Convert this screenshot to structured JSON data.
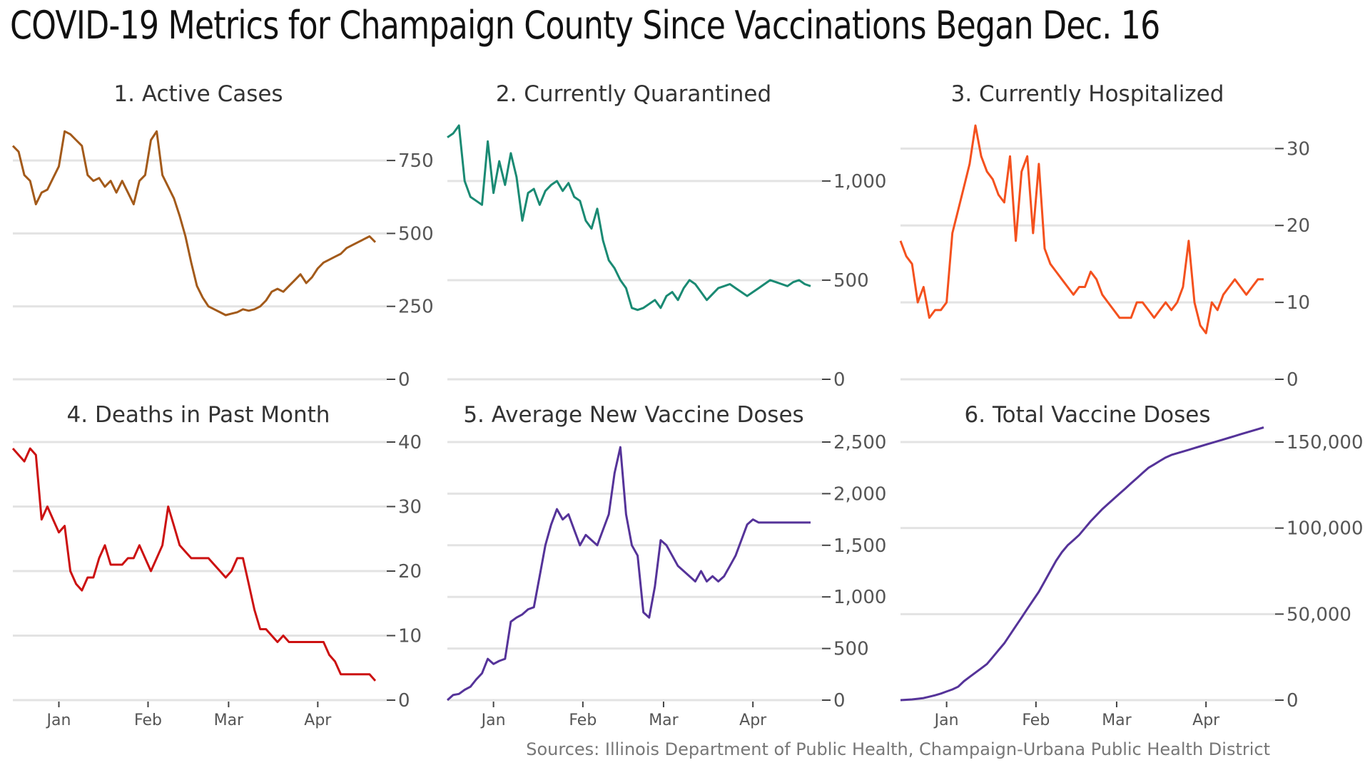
{
  "title": "COVID-19 Metrics for Champaign County Since Vaccinations Began Dec. 16",
  "source": "Sources: Illinois Department of Public Health, Champaign-Urbana Public Health District",
  "x_axis": {
    "start_day": 0,
    "end_day": 127,
    "ticks": [
      {
        "label": "Jan",
        "day": 16
      },
      {
        "label": "Feb",
        "day": 47
      },
      {
        "label": "Mar",
        "day": 75
      },
      {
        "label": "Apr",
        "day": 106
      }
    ]
  },
  "chart_data": [
    {
      "type": "line",
      "title": "1. Active Cases",
      "color": "#a35a1a",
      "ylim": [
        0,
        870
      ],
      "yticks": [
        0,
        250,
        500,
        750
      ],
      "ytick_labels": [
        "0",
        "250",
        "500",
        "750"
      ],
      "x": [
        0,
        2,
        4,
        6,
        8,
        10,
        12,
        14,
        16,
        18,
        20,
        22,
        24,
        26,
        28,
        30,
        32,
        34,
        36,
        38,
        40,
        42,
        44,
        46,
        48,
        50,
        52,
        54,
        56,
        58,
        60,
        62,
        64,
        66,
        68,
        70,
        72,
        74,
        76,
        78,
        80,
        82,
        84,
        86,
        88,
        90,
        92,
        94,
        96,
        98,
        100,
        102,
        104,
        106,
        108,
        110,
        112,
        114,
        116,
        118,
        120,
        122,
        124,
        126
      ],
      "values": [
        800,
        780,
        700,
        680,
        600,
        640,
        650,
        690,
        730,
        850,
        840,
        820,
        800,
        700,
        680,
        690,
        660,
        680,
        640,
        680,
        640,
        600,
        680,
        700,
        820,
        850,
        700,
        660,
        620,
        560,
        490,
        400,
        320,
        280,
        250,
        240,
        230,
        220,
        225,
        230,
        240,
        235,
        240,
        250,
        270,
        300,
        310,
        300,
        320,
        340,
        360,
        330,
        350,
        380,
        400,
        410,
        420,
        430,
        450,
        460,
        470,
        480,
        490,
        470
      ]
    },
    {
      "type": "line",
      "title": "2. Currently Quarantined",
      "color": "#1a8a73",
      "ylim": [
        0,
        1280
      ],
      "yticks": [
        0,
        500,
        1000
      ],
      "ytick_labels": [
        "0",
        "500",
        "1,000"
      ],
      "x": [
        0,
        2,
        4,
        6,
        8,
        10,
        12,
        14,
        16,
        18,
        20,
        22,
        24,
        26,
        28,
        30,
        32,
        34,
        36,
        38,
        40,
        42,
        44,
        46,
        48,
        50,
        52,
        54,
        56,
        58,
        60,
        62,
        64,
        66,
        68,
        70,
        72,
        74,
        76,
        78,
        80,
        82,
        84,
        86,
        88,
        90,
        92,
        94,
        96,
        98,
        100,
        102,
        104,
        106,
        108,
        110,
        112,
        114,
        116,
        118,
        120,
        122,
        124,
        126
      ],
      "values": [
        1220,
        1240,
        1280,
        1000,
        920,
        900,
        880,
        1200,
        940,
        1100,
        980,
        1140,
        1020,
        800,
        940,
        960,
        880,
        950,
        980,
        1000,
        950,
        990,
        920,
        900,
        800,
        760,
        860,
        700,
        600,
        560,
        500,
        460,
        360,
        350,
        360,
        380,
        400,
        360,
        420,
        440,
        400,
        460,
        500,
        480,
        440,
        400,
        430,
        460,
        470,
        480,
        460,
        440,
        420,
        440,
        460,
        480,
        500,
        490,
        480,
        470,
        490,
        500,
        480,
        470
      ]
    },
    {
      "type": "line",
      "title": "3. Currently Hospitalized",
      "color": "#f4511e",
      "ylim": [
        0,
        33
      ],
      "yticks": [
        0,
        10,
        20,
        30
      ],
      "ytick_labels": [
        "0",
        "10",
        "20",
        "30"
      ],
      "x": [
        0,
        2,
        4,
        6,
        8,
        10,
        12,
        14,
        16,
        18,
        20,
        22,
        24,
        26,
        28,
        30,
        32,
        34,
        36,
        38,
        40,
        42,
        44,
        46,
        48,
        50,
        52,
        54,
        56,
        58,
        60,
        62,
        64,
        66,
        68,
        70,
        72,
        74,
        76,
        78,
        80,
        82,
        84,
        86,
        88,
        90,
        92,
        94,
        96,
        98,
        100,
        102,
        104,
        106,
        108,
        110,
        112,
        114,
        116,
        118,
        120,
        122,
        124,
        126
      ],
      "values": [
        18,
        16,
        15,
        10,
        12,
        8,
        9,
        9,
        10,
        19,
        22,
        25,
        28,
        33,
        29,
        27,
        26,
        24,
        23,
        29,
        18,
        27,
        29,
        19,
        28,
        17,
        15,
        14,
        13,
        12,
        11,
        12,
        12,
        14,
        13,
        11,
        10,
        9,
        8,
        8,
        8,
        10,
        10,
        9,
        8,
        9,
        10,
        9,
        10,
        12,
        18,
        10,
        7,
        6,
        10,
        9,
        11,
        12,
        13,
        12,
        11,
        12,
        13,
        13
      ]
    },
    {
      "type": "line",
      "title": "4. Deaths in Past Month",
      "color": "#cc1111",
      "ylim": [
        0,
        40
      ],
      "yticks": [
        0,
        10,
        20,
        30,
        40
      ],
      "ytick_labels": [
        "0",
        "10",
        "20",
        "30",
        "40"
      ],
      "x": [
        0,
        2,
        4,
        6,
        8,
        10,
        12,
        14,
        16,
        18,
        20,
        22,
        24,
        26,
        28,
        30,
        32,
        34,
        36,
        38,
        40,
        42,
        44,
        46,
        48,
        50,
        52,
        54,
        56,
        58,
        60,
        62,
        64,
        66,
        68,
        70,
        72,
        74,
        76,
        78,
        80,
        82,
        84,
        86,
        88,
        90,
        92,
        94,
        96,
        98,
        100,
        102,
        104,
        106,
        108,
        110,
        112,
        114,
        116,
        118,
        120,
        122,
        124,
        126
      ],
      "values": [
        39,
        38,
        37,
        39,
        38,
        28,
        30,
        28,
        26,
        27,
        20,
        18,
        17,
        19,
        19,
        22,
        24,
        21,
        21,
        21,
        22,
        22,
        24,
        22,
        20,
        22,
        24,
        30,
        27,
        24,
        23,
        22,
        22,
        22,
        22,
        21,
        20,
        19,
        20,
        22,
        22,
        18,
        14,
        11,
        11,
        10,
        9,
        10,
        9,
        9,
        9,
        9,
        9,
        9,
        9,
        7,
        6,
        4,
        4,
        4,
        4,
        4,
        4,
        3
      ]
    },
    {
      "type": "line",
      "title": "5. Average New Vaccine Doses",
      "color": "#553399",
      "ylim": [
        0,
        2500
      ],
      "yticks": [
        0,
        500,
        1000,
        1500,
        2000,
        2500
      ],
      "ytick_labels": [
        "0",
        "500",
        "1,000",
        "1,500",
        "2,000",
        "2,500"
      ],
      "x": [
        0,
        2,
        4,
        6,
        8,
        10,
        12,
        14,
        16,
        18,
        20,
        22,
        24,
        26,
        28,
        30,
        32,
        34,
        36,
        38,
        40,
        42,
        44,
        46,
        48,
        50,
        52,
        54,
        56,
        58,
        60,
        62,
        64,
        66,
        68,
        70,
        72,
        74,
        76,
        78,
        80,
        82,
        84,
        86,
        88,
        90,
        92,
        94,
        96,
        98,
        100,
        102,
        104,
        106,
        108,
        110,
        112,
        114,
        116,
        118,
        120,
        122,
        124,
        126
      ],
      "values": [
        0,
        50,
        60,
        100,
        130,
        200,
        260,
        400,
        350,
        380,
        400,
        760,
        800,
        830,
        880,
        900,
        1200,
        1500,
        1700,
        1850,
        1750,
        1800,
        1650,
        1500,
        1600,
        1550,
        1500,
        1650,
        1800,
        2200,
        2450,
        1800,
        1500,
        1400,
        850,
        800,
        1100,
        1550,
        1500,
        1400,
        1300,
        1250,
        1200,
        1150,
        1250,
        1150,
        1200,
        1150,
        1200,
        1300,
        1400,
        1550,
        1700,
        1750,
        1720,
        1720,
        1720,
        1720,
        1720,
        1720,
        1720,
        1720,
        1720,
        1720
      ]
    },
    {
      "type": "line",
      "title": "6. Total Vaccine Doses",
      "color": "#553399",
      "ylim": [
        0,
        150000
      ],
      "yticks": [
        0,
        50000,
        100000,
        150000
      ],
      "ytick_labels": [
        "0",
        "50,000",
        "100,000",
        "150,000"
      ],
      "x": [
        0,
        2,
        4,
        6,
        8,
        10,
        12,
        14,
        16,
        18,
        20,
        22,
        24,
        26,
        28,
        30,
        32,
        34,
        36,
        38,
        40,
        42,
        44,
        46,
        48,
        50,
        52,
        54,
        56,
        58,
        60,
        62,
        64,
        66,
        68,
        70,
        72,
        74,
        76,
        78,
        80,
        82,
        84,
        86,
        88,
        90,
        92,
        94,
        96,
        98,
        100,
        102,
        104,
        106,
        108,
        110,
        112,
        114,
        116,
        118,
        120,
        122,
        124,
        126
      ],
      "values": [
        0,
        200,
        400,
        800,
        1200,
        2000,
        2800,
        3800,
        5000,
        6200,
        7800,
        11000,
        13500,
        16000,
        18500,
        21000,
        25000,
        29000,
        33000,
        38000,
        43000,
        48000,
        53000,
        58000,
        63000,
        69000,
        75000,
        81000,
        86000,
        90000,
        93000,
        96000,
        100000,
        104000,
        107500,
        111000,
        114000,
        117000,
        120000,
        123000,
        126000,
        129000,
        132000,
        135000,
        137000,
        139000,
        141000,
        142500,
        143500,
        144500,
        145500,
        146500,
        147500,
        148500,
        149500,
        150500,
        151500,
        152500,
        153500,
        154500,
        155500,
        156500,
        157500,
        158500
      ]
    }
  ]
}
